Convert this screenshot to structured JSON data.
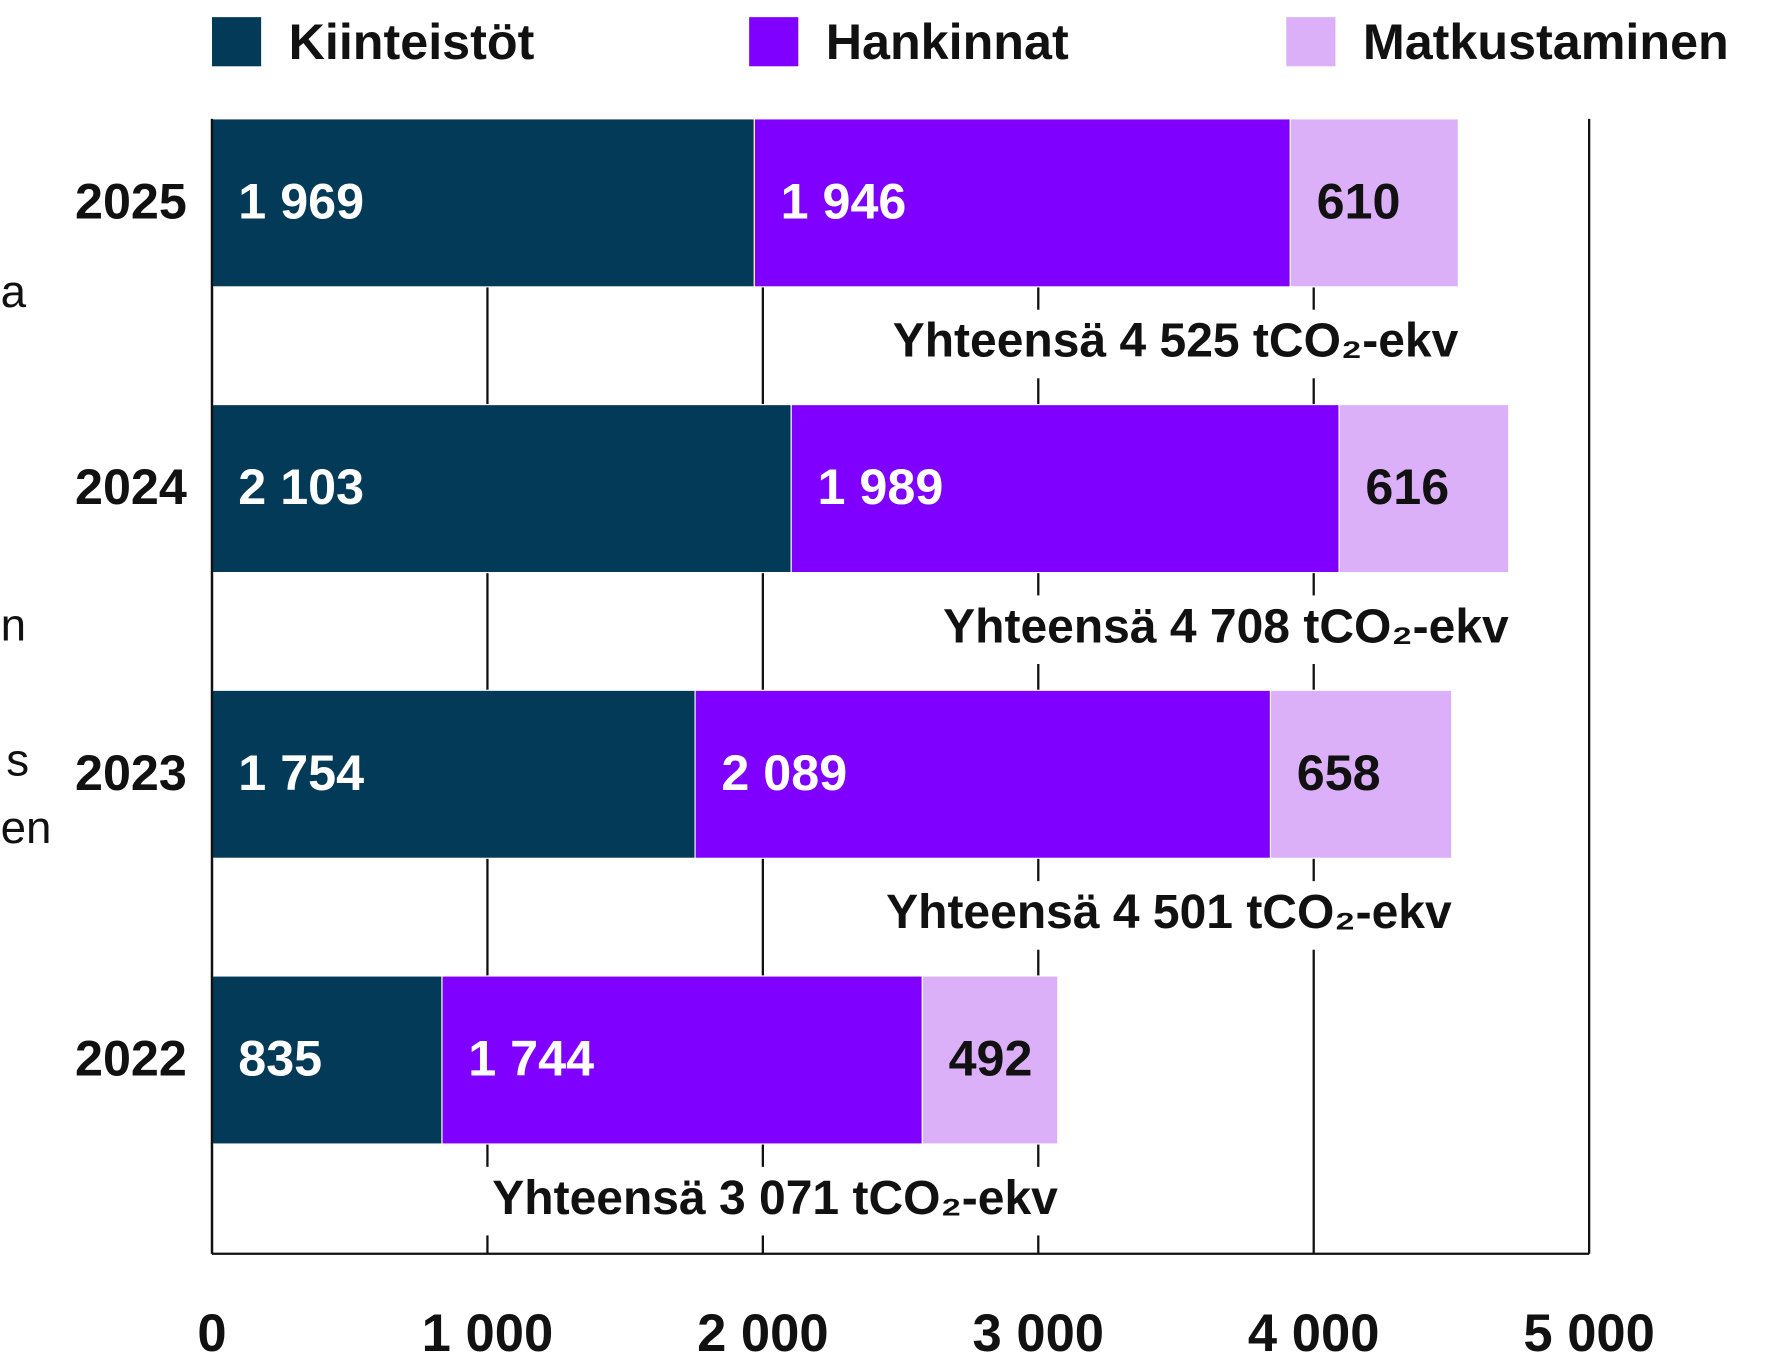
{
  "chart_data": {
    "type": "stacked_barh",
    "categories": [
      "2025",
      "2024",
      "2023",
      "2022"
    ],
    "series": [
      {
        "name": "Kiinteistöt",
        "color": "#023a57",
        "label_color": "#ffffff",
        "values": [
          1969,
          2103,
          1754,
          835
        ],
        "value_labels": [
          "1 969",
          "2 103",
          "1 754",
          "835"
        ]
      },
      {
        "name": "Hankinnat",
        "color": "#7f00ff",
        "label_color": "#ffffff",
        "values": [
          1946,
          1989,
          2089,
          1744
        ],
        "value_labels": [
          "1 946",
          "1 989",
          "2 089",
          "1 744"
        ]
      },
      {
        "name": "Matkustaminen",
        "color": "#dcb0f8",
        "label_color": "#111111",
        "values": [
          610,
          616,
          658,
          492
        ],
        "value_labels": [
          "610",
          "616",
          "658",
          "492"
        ]
      }
    ],
    "totals": [
      "Yhteensä 4 525 tCO₂-ekv",
      "Yhteensä 4 708 tCO₂-ekv",
      "Yhteensä 4 501 tCO₂-ekv",
      "Yhteensä 3 071 tCO₂-ekv"
    ],
    "xlim": [
      0,
      5000
    ],
    "xticks": [
      0,
      {
        "value": 1000,
        "label": "1 000"
      },
      {
        "value": 2000,
        "label": "2 000"
      },
      {
        "value": 3000,
        "label": "3 000"
      },
      {
        "value": 4000,
        "label": "4 000"
      },
      {
        "value": 5000,
        "label": "5 000"
      }
    ],
    "grid": true,
    "legend": "top"
  },
  "cropped_text": [
    "a",
    "n",
    "s",
    "en"
  ]
}
